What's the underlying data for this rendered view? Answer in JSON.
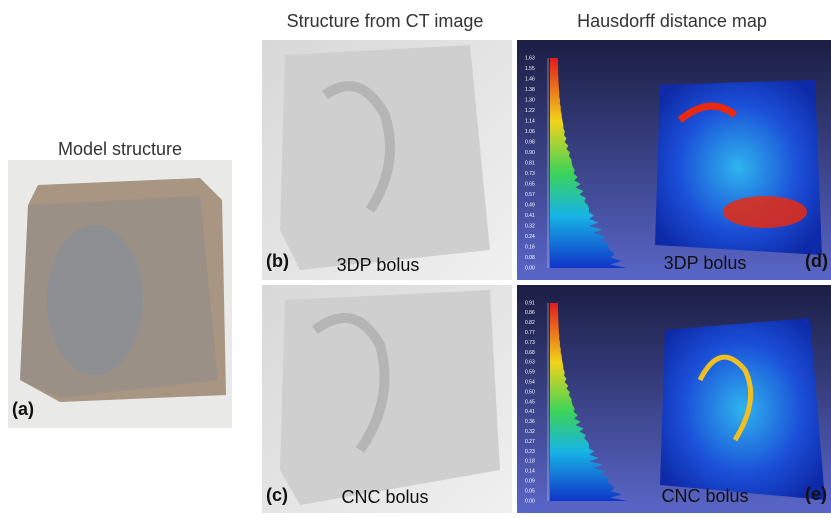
{
  "figure": {
    "model": {
      "title": "Model structure",
      "label": "(a)"
    },
    "ct": {
      "title": "Structure from CT image",
      "panels": [
        {
          "label": "(b)",
          "caption": "3DP bolus"
        },
        {
          "label": "(c)",
          "caption": "CNC bolus"
        }
      ]
    },
    "hausdorff": {
      "title": "Hausdorff distance map",
      "panels": [
        {
          "label": "(d)",
          "caption": "3DP bolus",
          "scale": [
            "1.63",
            "1.55",
            "1.46",
            "1.38",
            "1.30",
            "1.22",
            "1.14",
            "1.06",
            "0.98",
            "0.90",
            "0.81",
            "0.73",
            "0.65",
            "0.57",
            "0.49",
            "0.41",
            "0.32",
            "0.24",
            "0.16",
            "0.08",
            "0.00"
          ]
        },
        {
          "label": "(e)",
          "caption": "CNC bolus",
          "scale": [
            "0.91",
            "0.86",
            "0.82",
            "0.77",
            "0.73",
            "0.68",
            "0.63",
            "0.59",
            "0.54",
            "0.50",
            "0.45",
            "0.41",
            "0.36",
            "0.32",
            "0.27",
            "0.23",
            "0.18",
            "0.14",
            "0.09",
            "0.05",
            "0.00"
          ]
        }
      ]
    }
  }
}
